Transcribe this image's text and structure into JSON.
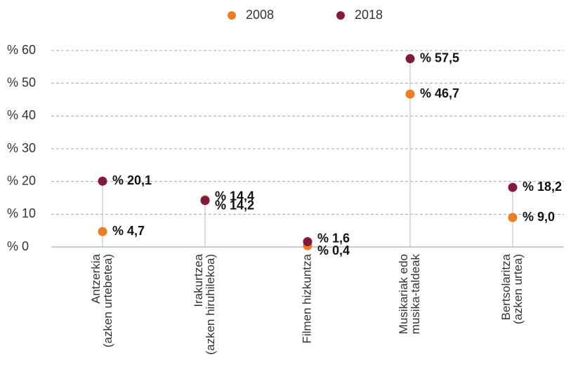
{
  "chart_data": {
    "type": "dot",
    "categories": [
      [
        "Antzerkia",
        "(azken urtebetea)"
      ],
      [
        "Irakurtzea",
        "(azken hiruhilekoa)"
      ],
      [
        "Filmen hizkuntza"
      ],
      [
        "Musikariak edo",
        "musika-taldeak"
      ],
      [
        "Bertsolaritza",
        "(azken urtea)"
      ]
    ],
    "series": [
      {
        "name": "2008",
        "color": "#f07d1e",
        "values": [
          4.7,
          14.4,
          0.4,
          46.7,
          9.0
        ],
        "value_labels": [
          "% 4,7",
          "% 14,4",
          "% 0,4",
          "% 46,7",
          "% 9,0"
        ]
      },
      {
        "name": "2018",
        "color": "#86173f",
        "values": [
          20.1,
          14.2,
          1.6,
          57.5,
          18.2
        ],
        "value_labels": [
          "% 20,1",
          "% 14,2",
          "% 1,6",
          "% 57,5",
          "% 18,2"
        ]
      }
    ],
    "ylim": [
      0,
      60
    ],
    "yticks": [
      {
        "value": 0,
        "label": "% 0"
      },
      {
        "value": 10,
        "label": "% 10"
      },
      {
        "value": 20,
        "label": "% 20"
      },
      {
        "value": 30,
        "label": "% 30"
      },
      {
        "value": 40,
        "label": "% 40"
      },
      {
        "value": 50,
        "label": "% 50"
      },
      {
        "value": 60,
        "label": "% 60"
      }
    ],
    "grid": true,
    "legend": "top"
  }
}
